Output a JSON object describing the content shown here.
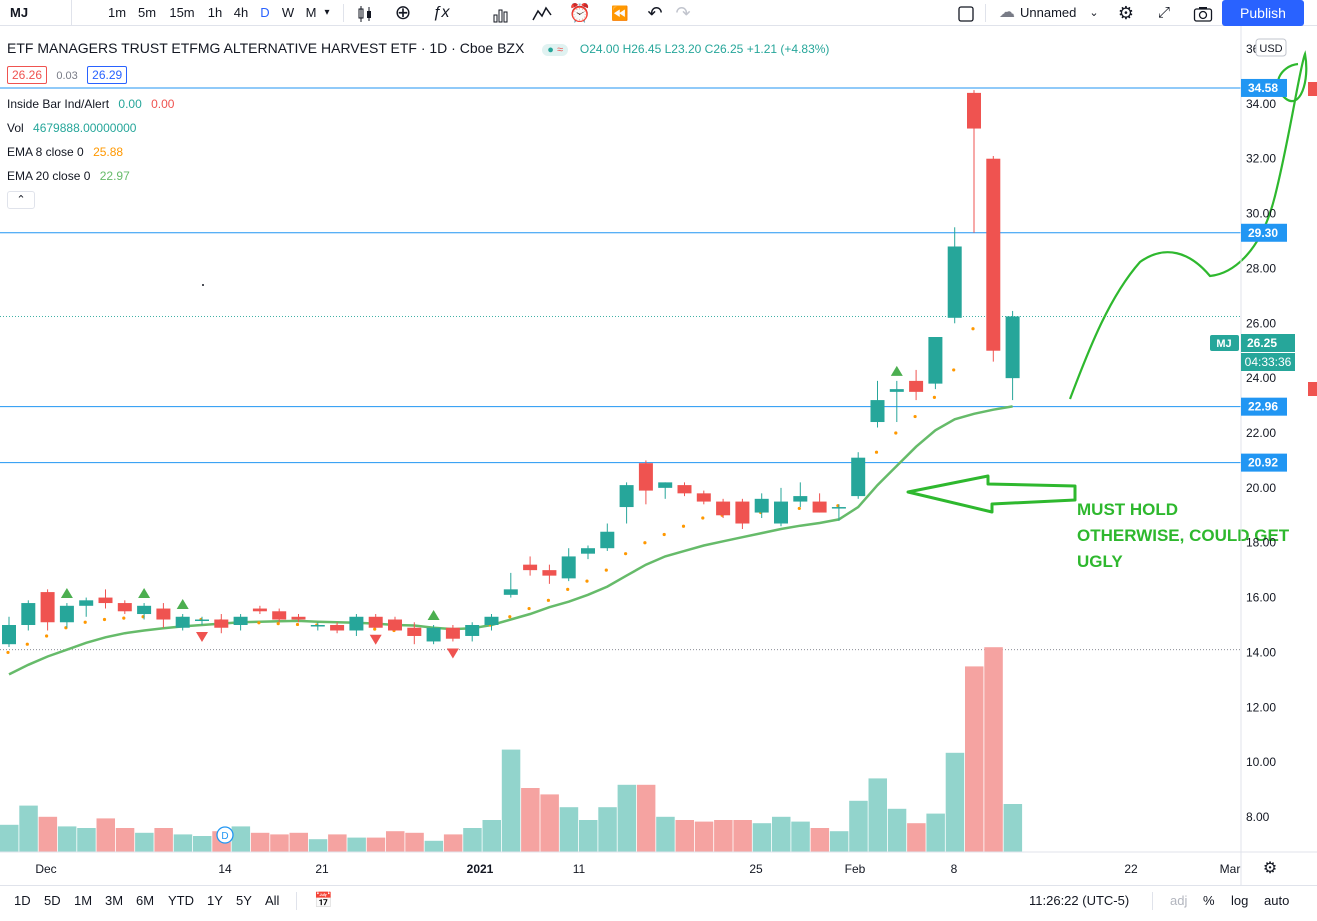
{
  "toolbar": {
    "symbol": "MJ",
    "intervals": [
      "1m",
      "5m",
      "15m",
      "1h",
      "4h",
      "D",
      "W",
      "M"
    ],
    "active_interval": "D",
    "layout_name": "Unnamed",
    "publish_label": "Publish"
  },
  "legend": {
    "title": "ETF MANAGERS TRUST ETFMG ALTERNATIVE HARVEST ETF · 1D · Cboe BZX",
    "ohlc": {
      "O": "24.00",
      "H": "26.45",
      "L": "23.20",
      "C": "26.25",
      "change": "+1.21 (+4.83%)"
    },
    "bid": "26.26",
    "spread": "0.03",
    "ask": "26.29",
    "indicators": [
      {
        "name": "Inside Bar Ind/Alert",
        "values": [
          "0.00",
          "0.00"
        ]
      },
      {
        "name": "Vol",
        "values": [
          "4679888.00000000"
        ]
      },
      {
        "name": "EMA 8 close 0",
        "values": [
          "25.88"
        ]
      },
      {
        "name": "EMA 20 close 0",
        "values": [
          "22.97"
        ]
      }
    ],
    "currency": "USD"
  },
  "price_axis": {
    "ticks": [
      "36.00",
      "34.00",
      "32.00",
      "30.00",
      "28.00",
      "26.00",
      "24.00",
      "22.00",
      "20.00",
      "18.00",
      "16.00",
      "14.00",
      "12.00",
      "10.00",
      "8.00"
    ],
    "levels": [
      {
        "label": "34.58",
        "color": "#2196f3"
      },
      {
        "label": "29.30",
        "color": "#2196f3"
      },
      {
        "label": "22.96",
        "color": "#2196f3"
      },
      {
        "label": "20.92",
        "color": "#2196f3"
      }
    ],
    "last_price": {
      "symbol": "MJ",
      "value": "26.25",
      "countdown": "04:33:36",
      "color": "#26a69a"
    }
  },
  "time_axis": {
    "labels": [
      "Dec",
      "14",
      "21",
      "2021",
      "11",
      "25",
      "Feb",
      "8",
      "22",
      "Mar"
    ]
  },
  "annotation": {
    "lines": [
      "MUST HOLD",
      "OTHERWISE, COULD GET",
      "UGLY"
    ],
    "color": "#2eb82e"
  },
  "dividend_marker": "D",
  "bottom_bar": {
    "ranges": [
      "1D",
      "5D",
      "1M",
      "3M",
      "6M",
      "YTD",
      "1Y",
      "5Y",
      "All"
    ],
    "clock": "11:26:22 (UTC-5)",
    "toggles": [
      "adj",
      "%",
      "log",
      "auto"
    ]
  },
  "chart_data": {
    "type": "candlestick",
    "title": "ETF MANAGERS TRUST ETFMG ALTERNATIVE HARVEST ETF · 1D · Cboe BZX",
    "ylim": [
      7.5,
      37
    ],
    "colors": {
      "up": "#26a69a",
      "down": "#ef5350",
      "ema20": "#66bb6a",
      "ema8": "#ff9800"
    },
    "candles": [
      {
        "o": 14.3,
        "h": 15.3,
        "l": 14.2,
        "c": 15.0
      },
      {
        "o": 15.0,
        "h": 15.9,
        "l": 14.8,
        "c": 15.8
      },
      {
        "o": 16.2,
        "h": 16.3,
        "l": 14.8,
        "c": 15.1
      },
      {
        "o": 15.1,
        "h": 15.8,
        "l": 14.9,
        "c": 15.7
      },
      {
        "o": 15.7,
        "h": 16.0,
        "l": 15.3,
        "c": 15.9
      },
      {
        "o": 16.0,
        "h": 16.3,
        "l": 15.6,
        "c": 15.8
      },
      {
        "o": 15.8,
        "h": 15.9,
        "l": 15.4,
        "c": 15.5
      },
      {
        "o": 15.4,
        "h": 15.8,
        "l": 15.2,
        "c": 15.7
      },
      {
        "o": 15.6,
        "h": 15.8,
        "l": 14.9,
        "c": 15.2
      },
      {
        "o": 14.9,
        "h": 15.4,
        "l": 14.8,
        "c": 15.3
      },
      {
        "o": 15.2,
        "h": 15.3,
        "l": 15.0,
        "c": 15.2
      },
      {
        "o": 15.2,
        "h": 15.4,
        "l": 14.7,
        "c": 14.9
      },
      {
        "o": 15.0,
        "h": 15.4,
        "l": 14.8,
        "c": 15.3
      },
      {
        "o": 15.6,
        "h": 15.7,
        "l": 15.4,
        "c": 15.5
      },
      {
        "o": 15.5,
        "h": 15.6,
        "l": 15.1,
        "c": 15.2
      },
      {
        "o": 15.3,
        "h": 15.4,
        "l": 15.1,
        "c": 15.2
      },
      {
        "o": 15.0,
        "h": 15.1,
        "l": 14.8,
        "c": 15.0
      },
      {
        "o": 15.0,
        "h": 15.1,
        "l": 14.7,
        "c": 14.8
      },
      {
        "o": 14.8,
        "h": 15.4,
        "l": 14.6,
        "c": 15.3
      },
      {
        "o": 15.3,
        "h": 15.4,
        "l": 14.9,
        "c": 14.9
      },
      {
        "o": 15.2,
        "h": 15.3,
        "l": 14.8,
        "c": 14.8
      },
      {
        "o": 14.9,
        "h": 15.1,
        "l": 14.3,
        "c": 14.6
      },
      {
        "o": 14.4,
        "h": 15.0,
        "l": 14.3,
        "c": 14.9
      },
      {
        "o": 14.9,
        "h": 15.0,
        "l": 14.4,
        "c": 14.5
      },
      {
        "o": 14.6,
        "h": 15.1,
        "l": 14.4,
        "c": 15.0
      },
      {
        "o": 15.0,
        "h": 15.4,
        "l": 14.8,
        "c": 15.3
      },
      {
        "o": 16.1,
        "h": 16.9,
        "l": 16.0,
        "c": 16.3
      },
      {
        "o": 17.2,
        "h": 17.5,
        "l": 16.8,
        "c": 17.0
      },
      {
        "o": 17.0,
        "h": 17.2,
        "l": 16.5,
        "c": 16.8
      },
      {
        "o": 16.7,
        "h": 17.8,
        "l": 16.6,
        "c": 17.5
      },
      {
        "o": 17.6,
        "h": 17.9,
        "l": 17.4,
        "c": 17.8
      },
      {
        "o": 17.8,
        "h": 18.7,
        "l": 17.7,
        "c": 18.4
      },
      {
        "o": 19.3,
        "h": 20.2,
        "l": 18.7,
        "c": 20.1
      },
      {
        "o": 20.9,
        "h": 21.0,
        "l": 19.4,
        "c": 19.9
      },
      {
        "o": 20.0,
        "h": 20.2,
        "l": 19.6,
        "c": 20.2
      },
      {
        "o": 20.1,
        "h": 20.2,
        "l": 19.7,
        "c": 19.8
      },
      {
        "o": 19.8,
        "h": 19.9,
        "l": 19.4,
        "c": 19.5
      },
      {
        "o": 19.5,
        "h": 19.6,
        "l": 18.9,
        "c": 19.0
      },
      {
        "o": 19.5,
        "h": 19.6,
        "l": 18.5,
        "c": 18.7
      },
      {
        "o": 19.1,
        "h": 19.8,
        "l": 18.9,
        "c": 19.6
      },
      {
        "o": 18.7,
        "h": 20.0,
        "l": 18.6,
        "c": 19.5
      },
      {
        "o": 19.5,
        "h": 20.2,
        "l": 19.3,
        "c": 19.7
      },
      {
        "o": 19.5,
        "h": 19.8,
        "l": 19.1,
        "c": 19.1
      },
      {
        "o": 19.3,
        "h": 19.4,
        "l": 18.8,
        "c": 19.3
      },
      {
        "o": 19.7,
        "h": 21.3,
        "l": 19.6,
        "c": 21.1
      },
      {
        "o": 22.4,
        "h": 23.9,
        "l": 22.2,
        "c": 23.2
      },
      {
        "o": 23.5,
        "h": 23.9,
        "l": 22.4,
        "c": 23.6
      },
      {
        "o": 23.9,
        "h": 24.3,
        "l": 23.2,
        "c": 23.5
      },
      {
        "o": 23.8,
        "h": 25.5,
        "l": 23.6,
        "c": 25.5
      },
      {
        "o": 26.2,
        "h": 29.5,
        "l": 26.0,
        "c": 28.8
      },
      {
        "o": 34.4,
        "h": 34.5,
        "l": 29.3,
        "c": 33.1
      },
      {
        "o": 32.0,
        "h": 32.1,
        "l": 24.6,
        "c": 25.0
      },
      {
        "o": 24.0,
        "h": 26.45,
        "l": 23.2,
        "c": 26.25
      }
    ],
    "volume": [
      0.85,
      1.45,
      1.1,
      0.8,
      0.75,
      1.05,
      0.75,
      0.6,
      0.75,
      0.55,
      0.5,
      0.65,
      0.8,
      0.6,
      0.55,
      0.6,
      0.4,
      0.55,
      0.45,
      0.45,
      0.65,
      0.6,
      0.35,
      0.55,
      0.75,
      1.0,
      3.2,
      2.0,
      1.8,
      1.4,
      1.0,
      1.4,
      2.1,
      2.1,
      1.1,
      1.0,
      0.95,
      1.0,
      1.0,
      0.9,
      1.1,
      0.95,
      0.75,
      0.65,
      1.6,
      2.3,
      1.35,
      0.9,
      1.2,
      3.1,
      5.8,
      6.4,
      1.5
    ],
    "ema20": [
      13.2,
      13.55,
      13.85,
      14.1,
      14.35,
      14.55,
      14.7,
      14.8,
      14.88,
      14.95,
      15.0,
      15.05,
      15.1,
      15.12,
      15.14,
      15.15,
      15.12,
      15.1,
      15.08,
      15.05,
      15.0,
      14.98,
      14.9,
      14.85,
      14.88,
      15.0,
      15.2,
      15.4,
      15.65,
      15.85,
      16.1,
      16.4,
      16.8,
      17.2,
      17.5,
      17.7,
      17.9,
      18.05,
      18.2,
      18.35,
      18.5,
      18.62,
      18.72,
      18.85,
      19.3,
      20.1,
      20.8,
      21.5,
      22.1,
      22.5,
      22.7,
      22.85,
      22.97
    ],
    "ema8": [
      14.0,
      14.3,
      14.6,
      14.9,
      15.1,
      15.2,
      15.25,
      15.3,
      15.3,
      15.25,
      15.2,
      15.15,
      15.1,
      15.08,
      15.05,
      15.02,
      15.0,
      14.95,
      14.9,
      14.85,
      14.8,
      14.75,
      14.7,
      14.7,
      14.8,
      15.0,
      15.3,
      15.6,
      15.9,
      16.3,
      16.6,
      17.0,
      17.6,
      18.0,
      18.3,
      18.6,
      18.9,
      19.0,
      19.05,
      19.1,
      19.2,
      19.25,
      19.3,
      19.35,
      20.5,
      21.3,
      22.0,
      22.6,
      23.3,
      24.3,
      25.8,
      25.9,
      25.88
    ],
    "up_markers": [
      3,
      7,
      9,
      22,
      46
    ],
    "down_markers": [
      10,
      19,
      23
    ]
  }
}
